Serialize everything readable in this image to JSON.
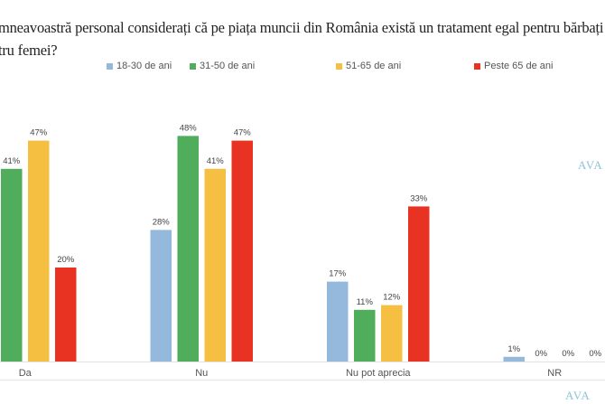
{
  "title": {
    "line1": "mneavoastră personal considerați că pe piața muncii din România există un tratament egal pentru bărbați și",
    "line2": "tru femei?"
  },
  "logo": "AVA",
  "chart_data": {
    "type": "bar",
    "categories": [
      "Da",
      "Nu",
      "Nu pot aprecia",
      "NR"
    ],
    "series": [
      {
        "name": "18-30 de ani",
        "color": "#95b8dd",
        "values": [
          null,
          28,
          17,
          1
        ]
      },
      {
        "name": "31-50 de ani",
        "color": "#4fad5b",
        "values": [
          41,
          48,
          11,
          0
        ]
      },
      {
        "name": "51-65 de ani",
        "color": "#f5bf42",
        "values": [
          47,
          41,
          12,
          0
        ]
      },
      {
        "name": "Peste 65 de ani",
        "color": "#e83323",
        "values": [
          20,
          47,
          33,
          0
        ]
      }
    ],
    "data_labels": true,
    "value_suffix": "%",
    "ylim": [
      0,
      50
    ],
    "grid": false,
    "legend": "top"
  }
}
